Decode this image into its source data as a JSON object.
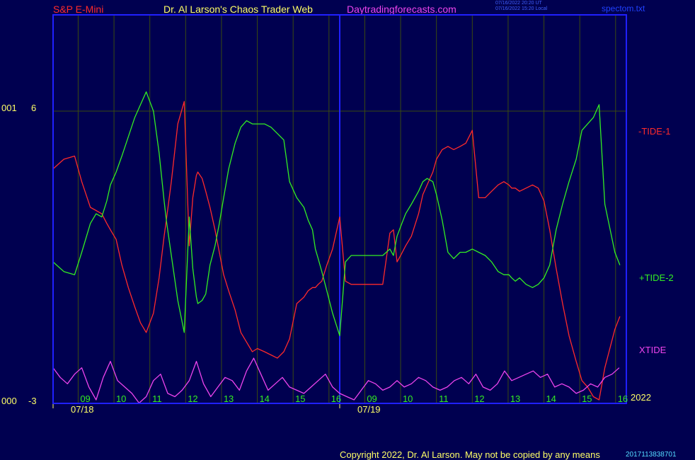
{
  "header": {
    "instrument": "S&P E-Mini",
    "site": "Dr. Al Larson's Chaos Trader Web",
    "url": "Daytradingforecasts.com",
    "timestamp_ut": "07/16/2022 20:20 UT",
    "timestamp_local": "07/16/2022 15:20 Local",
    "filename": "spectom.txt"
  },
  "colors": {
    "background": "#000050",
    "frame": "#2020ff",
    "grid": "#3a4a10",
    "tide1": "#ff2a2a",
    "tide2": "#33ee22",
    "xtide": "#ee44ee",
    "labels": "#ffff66",
    "hours": "#33ee22"
  },
  "footer": {
    "copyright": "Copyright 2022, Dr. Al Larson. May not be copied by any means",
    "version": "2017113838701"
  },
  "chart_data": {
    "type": "line",
    "y_axis_labels": [
      {
        "prefix": "001",
        "value": "6"
      },
      {
        "prefix": "000",
        "value": "-3"
      }
    ],
    "ylim": [
      -3,
      6
    ],
    "x_hour_labels": [
      "09",
      "10",
      "11",
      "12",
      "13",
      "14",
      "15",
      "16",
      "09",
      "10",
      "11",
      "12",
      "13",
      "14",
      "15",
      "16"
    ],
    "x_date_labels": [
      "07/18",
      "07/19"
    ],
    "year_label": "2022",
    "series": [
      {
        "name": "-TIDE-1",
        "color": "#ff2a2a",
        "x": [
          0,
          1.5,
          3,
          4,
          5.2,
          6,
          6.8,
          7.5,
          8,
          8.8,
          9.6,
          10.5,
          11.4,
          12.2,
          13,
          14,
          14.8,
          15.5,
          15.8,
          16.5,
          17.4,
          18.3,
          19,
          19.5,
          20,
          20.2,
          20.8,
          21.3,
          21.9,
          22.6,
          23.2,
          23.8,
          24.5,
          25.4,
          26.2,
          27,
          27.8,
          28.5,
          29.5,
          30.4,
          31.3,
          32.2,
          33,
          34,
          35,
          35.6,
          36.2,
          36.6,
          37,
          37.5,
          38.2,
          39,
          40,
          40.8,
          41.6,
          42.5,
          43.4,
          44.3,
          45.1,
          46,
          47,
          47.5,
          48,
          48.5,
          49.2,
          50,
          51,
          51.6,
          52.2,
          53,
          53.5,
          54.3,
          55.1,
          55.9,
          56.8,
          57.6,
          58.5,
          59.4,
          60.3,
          61.2,
          62.1,
          62.9,
          63.6,
          64,
          64.5,
          65.1,
          66,
          66.9,
          67.7,
          68.5,
          69.3,
          70.2,
          71.1,
          72,
          73,
          73.8,
          74.6,
          75.4,
          76.2,
          77,
          78.4,
          79.1
        ],
        "y": [
          4.2,
          4.5,
          4.6,
          3.8,
          3,
          2.9,
          2.8,
          2.5,
          2.3,
          2,
          1.2,
          0.5,
          -0.1,
          -0.6,
          -0.9,
          -0.3,
          0.8,
          2.1,
          2.6,
          3.8,
          5.6,
          6.3,
          1.8,
          3.3,
          4,
          4.1,
          3.9,
          3.5,
          3,
          2.3,
          1.6,
          0.9,
          0.4,
          -0.2,
          -0.9,
          -1.2,
          -1.5,
          -1.4,
          -1.5,
          -1.6,
          -1.7,
          -1.5,
          -1.1,
          0,
          0.2,
          0.4,
          0.5,
          0.5,
          0.6,
          0.7,
          1.2,
          1.7,
          2.7,
          0.7,
          0.6,
          0.6,
          0.6,
          0.6,
          0.6,
          0.6,
          2.2,
          2.3,
          1.3,
          1.5,
          1.8,
          2.1,
          2.8,
          3.4,
          3.7,
          4.1,
          4.5,
          4.8,
          4.9,
          4.8,
          4.9,
          5,
          5.4,
          3.3,
          3.3,
          3.5,
          3.7,
          3.8,
          3.7,
          3.6,
          3.6,
          3.5,
          3.6,
          3.7,
          3.6,
          3.2,
          2.3,
          1.1,
          0,
          -1,
          -1.8,
          -2.4,
          -2.6,
          -2.9,
          -3,
          -2,
          -0.8,
          -0.4
        ]
      },
      {
        "name": "+TIDE-2",
        "color": "#33ee22",
        "x": [
          0,
          1.5,
          3,
          4,
          5.2,
          6,
          6.8,
          7.5,
          8,
          8.8,
          9.6,
          10.5,
          11.4,
          12.2,
          13,
          14,
          14.8,
          15.5,
          15.8,
          16.5,
          17.4,
          18.3,
          19,
          19.5,
          20,
          20.2,
          20.8,
          21.3,
          21.9,
          22.6,
          23.2,
          23.8,
          24.5,
          25.4,
          26.2,
          27,
          27.8,
          28.5,
          29.5,
          30.4,
          31.3,
          32.2,
          33,
          34,
          35,
          35.6,
          36.2,
          36.6,
          37,
          37.5,
          38.2,
          39,
          40,
          40.8,
          41.6,
          42.5,
          43.4,
          44.3,
          45.1,
          46,
          47,
          47.5,
          48,
          48.5,
          49.2,
          50,
          51,
          51.6,
          52.2,
          53,
          53.5,
          54.3,
          55.1,
          55.9,
          56.8,
          57.6,
          58.5,
          59.4,
          60.3,
          61.2,
          62.1,
          62.9,
          63.6,
          64,
          64.5,
          65.1,
          66,
          66.9,
          67.7,
          68.5,
          69.3,
          70.2,
          71.1,
          72,
          73,
          73.8,
          74.6,
          75.4,
          76.2,
          77,
          78.4,
          79.1
        ],
        "y": [
          1.3,
          1,
          0.9,
          1.6,
          2.5,
          2.8,
          2.7,
          3.2,
          3.7,
          4.1,
          4.6,
          5.2,
          5.8,
          6.2,
          6.6,
          6,
          4.7,
          3.2,
          2.6,
          1.5,
          0.1,
          -0.9,
          2.7,
          1.1,
          0.2,
          0,
          0.1,
          0.3,
          1.2,
          1.8,
          2.5,
          3.3,
          4.2,
          5,
          5.5,
          5.7,
          5.6,
          5.6,
          5.6,
          5.5,
          5.3,
          5.1,
          3.8,
          3.3,
          3,
          2.6,
          2.3,
          1.7,
          1.4,
          1,
          0.4,
          -0.3,
          -1,
          1.3,
          1.5,
          1.5,
          1.5,
          1.5,
          1.5,
          1.5,
          1.7,
          1.5,
          2.1,
          2.4,
          2.8,
          3.1,
          3.5,
          3.8,
          3.9,
          3.8,
          3.4,
          2.6,
          1.6,
          1.4,
          1.6,
          1.6,
          1.7,
          1.6,
          1.5,
          1.3,
          1,
          0.9,
          0.9,
          0.8,
          0.7,
          0.8,
          0.6,
          0.5,
          0.6,
          0.8,
          1.2,
          2.3,
          3.1,
          3.8,
          4.5,
          5.4,
          5.6,
          5.8,
          6.2,
          3.1,
          1.6,
          1.2
        ]
      },
      {
        "name": "XTIDE",
        "color": "#ee44ee",
        "x": [
          0,
          1,
          2,
          3,
          4,
          5,
          6,
          7,
          8,
          9,
          10,
          11,
          12,
          13,
          14,
          15,
          16,
          17,
          18,
          19,
          20,
          21,
          22,
          23,
          24,
          25,
          26,
          27,
          28,
          29,
          30,
          31,
          32,
          33,
          34,
          35,
          36,
          37,
          38,
          39,
          40,
          41,
          42,
          43,
          44,
          45,
          46,
          47,
          48,
          49,
          50,
          51,
          52,
          53,
          54,
          55,
          56,
          57,
          58,
          59,
          60,
          61,
          62,
          63,
          64,
          65,
          66,
          67,
          68,
          69,
          70,
          71,
          72,
          73,
          74,
          75,
          76,
          77,
          78,
          79
        ],
        "y": [
          -2.0,
          -2.3,
          -2.5,
          -2.2,
          -2.0,
          -2.6,
          -3.0,
          -2.3,
          -1.8,
          -2.4,
          -2.6,
          -2.8,
          -3.1,
          -2.9,
          -2.4,
          -2.2,
          -2.8,
          -2.9,
          -2.7,
          -2.4,
          -1.8,
          -2.5,
          -2.9,
          -2.6,
          -2.3,
          -2.4,
          -2.7,
          -2.1,
          -1.7,
          -2.2,
          -2.7,
          -2.5,
          -2.3,
          -2.6,
          -2.7,
          -2.8,
          -2.6,
          -2.4,
          -2.2,
          -2.6,
          -2.8,
          -2.9,
          -3.0,
          -2.7,
          -2.4,
          -2.5,
          -2.7,
          -2.6,
          -2.4,
          -2.6,
          -2.5,
          -2.3,
          -2.4,
          -2.6,
          -2.7,
          -2.6,
          -2.4,
          -2.3,
          -2.5,
          -2.2,
          -2.6,
          -2.7,
          -2.5,
          -2.1,
          -2.4,
          -2.3,
          -2.2,
          -2.1,
          -2.3,
          -2.2,
          -2.6,
          -2.5,
          -2.6,
          -2.8,
          -2.7,
          -2.5,
          -2.6,
          -2.3,
          -2.2,
          -2.0
        ]
      }
    ]
  }
}
